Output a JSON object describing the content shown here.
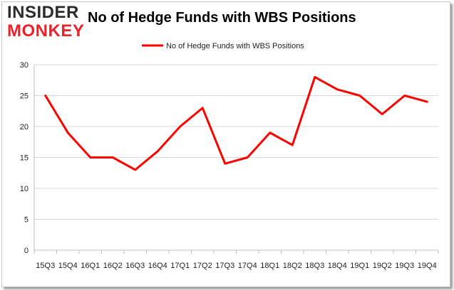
{
  "brand": {
    "logo_top": "INSIDER",
    "logo_bottom": "MONKEY",
    "accent": "#e8232a"
  },
  "chart_data": {
    "type": "line",
    "title": "No of Hedge Funds with WBS Positions",
    "categories": [
      "15Q3",
      "15Q4",
      "16Q1",
      "16Q2",
      "16Q3",
      "16Q4",
      "17Q1",
      "17Q2",
      "17Q3",
      "17Q4",
      "18Q1",
      "18Q2",
      "18Q3",
      "18Q4",
      "19Q1",
      "19Q2",
      "19Q3",
      "19Q4"
    ],
    "series": [
      {
        "name": "No of Hedge Funds with WBS Positions",
        "values": [
          25,
          19,
          15,
          15,
          13,
          16,
          20,
          23,
          14,
          15,
          19,
          17,
          28,
          26,
          25,
          22,
          25,
          24
        ],
        "color": "#ff0000"
      }
    ],
    "ylim": [
      0,
      30
    ],
    "yticks": [
      0,
      5,
      10,
      15,
      20,
      25,
      30
    ],
    "grid": true,
    "legend_position": "top-center"
  }
}
